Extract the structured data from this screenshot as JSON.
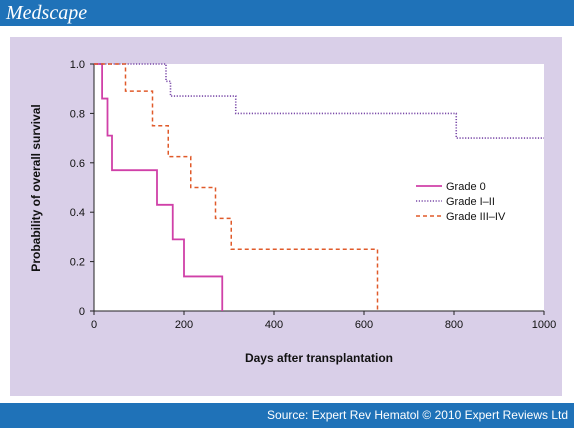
{
  "header": {
    "brand": "Medscape"
  },
  "footer": {
    "source": "Source: Expert Rev Hematol © 2010 Expert Reviews Ltd"
  },
  "colors": {
    "bar": "#1f72b8",
    "panel": "#d9cfe8",
    "plot_bg": "#ffffff",
    "grade0": "#d040a8",
    "grade1_2": "#7a4aa8",
    "grade3_4": "#e05a2a"
  },
  "chart_data": {
    "type": "line",
    "step": true,
    "xlabel": "Days after transplantation",
    "ylabel": "Probability of overall survival",
    "xlim": [
      0,
      1000
    ],
    "ylim": [
      0,
      1.0
    ],
    "xticks": [
      0,
      200,
      400,
      600,
      800,
      1000
    ],
    "yticks": [
      0,
      0.2,
      0.4,
      0.6,
      0.8,
      1.0
    ],
    "ytick_labels": [
      "0",
      "0.2",
      "0.4",
      "0.6",
      "0.8",
      "1.0"
    ],
    "grid": false,
    "legend_position": "right",
    "series": [
      {
        "name": "Grade 0",
        "style": "solid",
        "color": "#d040a8",
        "x": [
          18,
          30,
          40,
          140,
          175,
          200,
          285
        ],
        "y": [
          0.86,
          0.71,
          0.57,
          0.43,
          0.29,
          0.14,
          0.0
        ]
      },
      {
        "name": "Grade I–II",
        "style": "dotted",
        "color": "#7a4aa8",
        "x": [
          160,
          170,
          315,
          805
        ],
        "y": [
          0.93,
          0.87,
          0.8,
          0.7
        ]
      },
      {
        "name": "Grade III–IV",
        "style": "dashed",
        "color": "#e05a2a",
        "x": [
          70,
          130,
          165,
          215,
          270,
          305,
          630
        ],
        "y": [
          0.89,
          0.75,
          0.625,
          0.5,
          0.375,
          0.25,
          0.0
        ]
      }
    ]
  }
}
